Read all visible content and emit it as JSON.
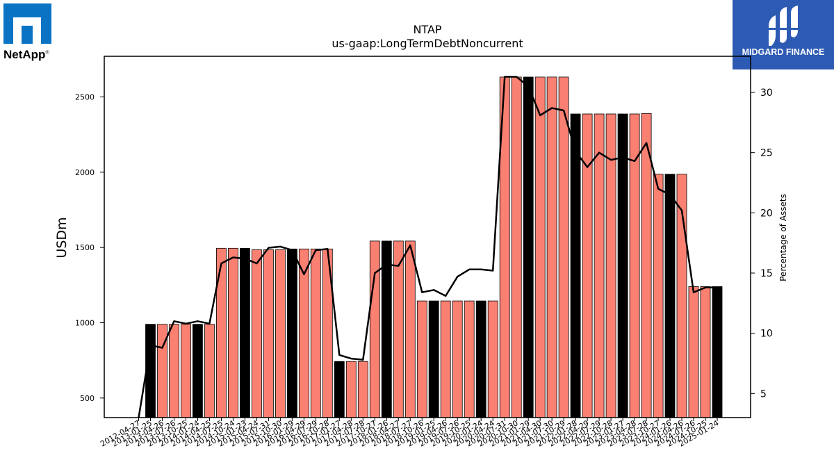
{
  "brand_left": {
    "text": "NetApp",
    "tm": "®"
  },
  "brand_right": {
    "text": "MIDGARD FINANCE"
  },
  "chart_data": {
    "type": "bar",
    "title": "NTAP",
    "subtitle": "us-gaap:LongTermDebtNoncurrent",
    "ylabel": "USDm",
    "y2label": "Percentage of Assets",
    "ylim": [
      370,
      2770
    ],
    "y2lim": [
      3.0,
      33.0
    ],
    "yticks": [
      500,
      1000,
      1500,
      2000,
      2500
    ],
    "y2ticks": [
      5,
      10,
      15,
      20,
      25,
      30
    ],
    "colors": {
      "bar": "#fa8072",
      "bar_highlight": "#000000",
      "line": "#000000"
    },
    "categories": [
      "2012-04-27",
      "2013-01-25",
      "2013-04-26",
      "2013-07-26",
      "2013-10-25",
      "2014-01-24",
      "2014-04-25",
      "2014-07-25",
      "2014-10-24",
      "2015-01-23",
      "2015-04-24",
      "2015-07-31",
      "2015-10-30",
      "2016-01-29",
      "2016-04-29",
      "2016-07-29",
      "2016-10-28",
      "2017-01-27",
      "2017-04-28",
      "2017-07-28",
      "2017-10-27",
      "2018-01-26",
      "2018-04-27",
      "2018-07-27",
      "2018-10-26",
      "2019-01-25",
      "2019-04-26",
      "2019-07-26",
      "2019-10-25",
      "2020-01-24",
      "2020-04-24",
      "2020-07-31",
      "2020-10-30",
      "2021-01-29",
      "2021-04-30",
      "2021-07-30",
      "2021-10-29",
      "2022-01-28",
      "2022-04-29",
      "2022-07-29",
      "2022-10-28",
      "2023-01-27",
      "2023-04-28",
      "2023-07-28",
      "2023-10-27",
      "2024-01-26",
      "2024-04-26",
      "2024-07-26",
      "2024-10-25",
      "2025-01-24"
    ],
    "values": [
      null,
      990,
      990,
      990,
      990,
      990,
      990,
      1495,
      1495,
      1495,
      1485,
      1485,
      1485,
      1490,
      1490,
      1490,
      1490,
      743,
      743,
      743,
      1543,
      1543,
      1543,
      1543,
      1145,
      1145,
      1145,
      1145,
      1145,
      1145,
      1145,
      2632,
      2632,
      2632,
      2632,
      2632,
      2632,
      2387,
      2387,
      2387,
      2387,
      2387,
      2387,
      2390,
      1987,
      1987,
      1987,
      1240,
      1240,
      1240
    ],
    "highlight": [
      false,
      true,
      false,
      false,
      false,
      true,
      false,
      false,
      false,
      true,
      false,
      false,
      false,
      true,
      false,
      false,
      false,
      true,
      false,
      false,
      false,
      true,
      false,
      false,
      false,
      true,
      false,
      false,
      false,
      true,
      false,
      false,
      false,
      true,
      false,
      false,
      false,
      true,
      false,
      false,
      false,
      true,
      false,
      false,
      false,
      true,
      false,
      false,
      false,
      true
    ],
    "pct_assets": [
      3.0,
      9.0,
      8.8,
      11.0,
      10.8,
      11.0,
      10.8,
      15.8,
      16.3,
      16.2,
      15.8,
      17.1,
      17.2,
      16.9,
      14.9,
      16.9,
      17.0,
      8.2,
      7.9,
      7.8,
      15.0,
      15.7,
      15.6,
      17.3,
      13.4,
      13.6,
      13.1,
      14.7,
      15.3,
      15.3,
      15.2,
      31.3,
      31.3,
      30.5,
      28.1,
      28.7,
      28.5,
      25.1,
      23.8,
      25.0,
      24.4,
      24.6,
      24.3,
      25.8,
      22.0,
      21.5,
      20.2,
      13.4,
      13.8,
      13.8
    ]
  }
}
